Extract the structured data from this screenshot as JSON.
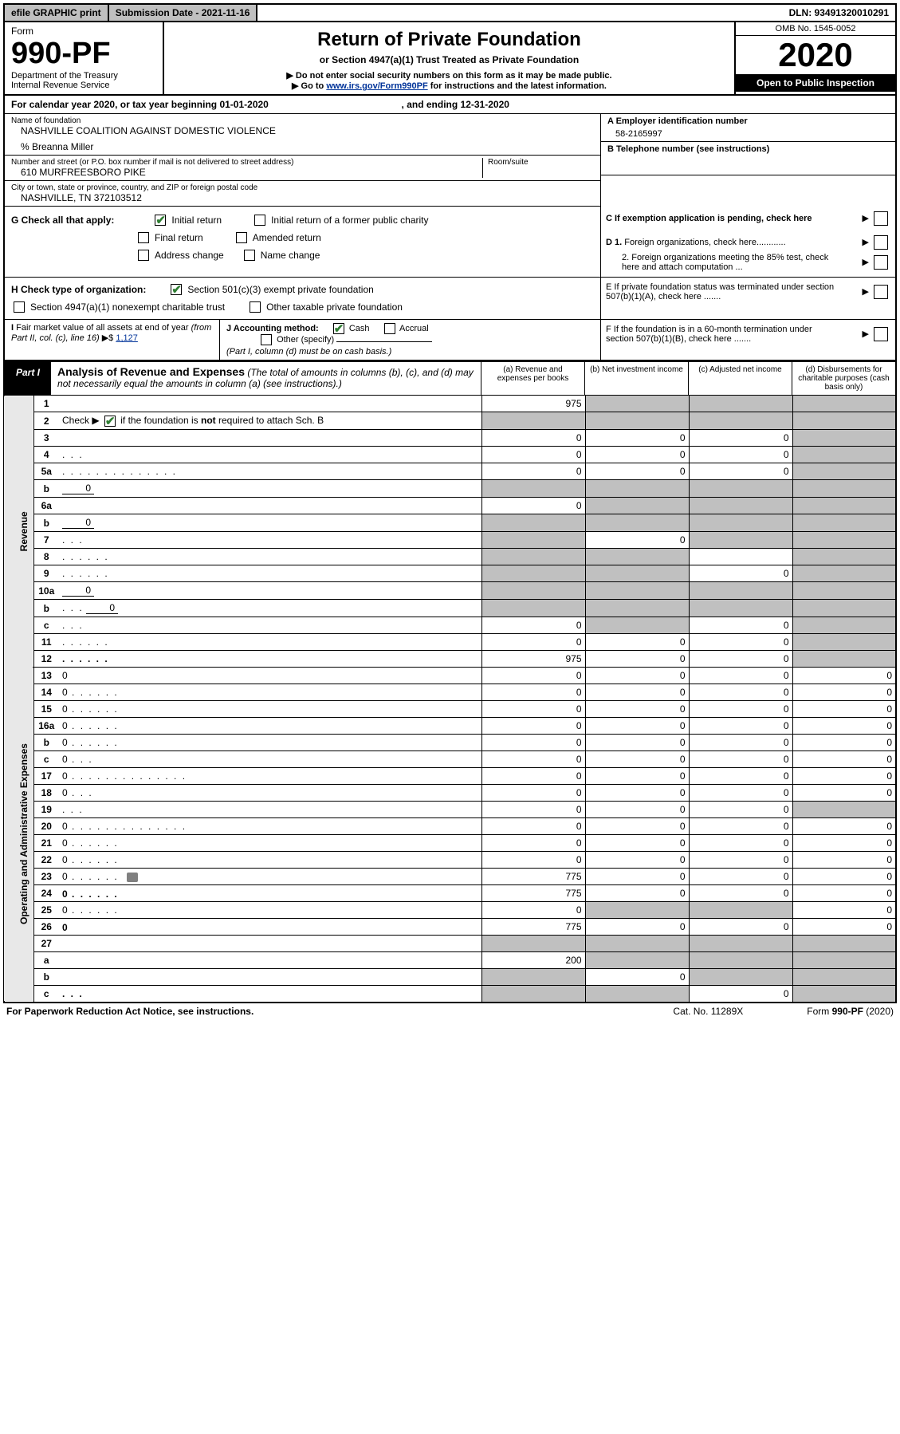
{
  "topbar": {
    "efile": "efile GRAPHIC print",
    "submission": "Submission Date - 2021-11-16",
    "dln": "DLN: 93491320010291"
  },
  "header": {
    "form_label": "Form",
    "form_number": "990-PF",
    "dept1": "Department of the Treasury",
    "dept2": "Internal Revenue Service",
    "title": "Return of Private Foundation",
    "subtitle": "or Section 4947(a)(1) Trust Treated as Private Foundation",
    "note1": "▶ Do not enter social security numbers on this form as it may be made public.",
    "note2_pre": "▶ Go to ",
    "note2_link": "www.irs.gov/Form990PF",
    "note2_post": " for instructions and the latest information.",
    "omb": "OMB No. 1545-0052",
    "year": "2020",
    "open": "Open to Public Inspection"
  },
  "calendar": {
    "text_pre": "For calendar year 2020, or tax year beginning ",
    "begin": "01-01-2020",
    "text_mid": " , and ending ",
    "end": "12-31-2020"
  },
  "entity": {
    "name_lbl": "Name of foundation",
    "name": "NASHVILLE COALITION AGAINST DOMESTIC VIOLENCE",
    "care_of": "% Breanna Miller",
    "addr_lbl": "Number and street (or P.O. box number if mail is not delivered to street address)",
    "addr": "610 MURFREESBORO PIKE",
    "room_lbl": "Room/suite",
    "city_lbl": "City or town, state or province, country, and ZIP or foreign postal code",
    "city": "NASHVILLE, TN  372103512",
    "a_lbl": "A Employer identification number",
    "a_val": "58-2165997",
    "b_lbl": "B Telephone number (see instructions)",
    "c_lbl": "C If exemption application is pending, check here",
    "d1_lbl": "D 1. Foreign organizations, check here............",
    "d2_lbl": "2. Foreign organizations meeting the 85% test, check here and attach computation ...",
    "e_lbl": "E  If private foundation status was terminated under section 507(b)(1)(A), check here .......",
    "f_lbl": "F  If the foundation is in a 60-month termination under section 507(b)(1)(B), check here .......",
    "g_lbl": "G Check all that apply:",
    "g_opts": [
      "Initial return",
      "Initial return of a former public charity",
      "Final return",
      "Amended return",
      "Address change",
      "Name change"
    ],
    "h_lbl": "H Check type of organization:",
    "h_opts": [
      "Section 501(c)(3) exempt private foundation",
      "Section 4947(a)(1) nonexempt charitable trust",
      "Other taxable private foundation"
    ],
    "i_lbl": "I Fair market value of all assets at end of year (from Part II, col. (c), line 16) ▶$ ",
    "i_val": "1,127",
    "j_lbl": "J Accounting method:",
    "j_opts": [
      "Cash",
      "Accrual",
      "Other (specify)"
    ],
    "j_note": "(Part I, column (d) must be on cash basis.)"
  },
  "part1": {
    "badge": "Part I",
    "title": "Analysis of Revenue and Expenses",
    "title_note": " (The total of amounts in columns (b), (c), and (d) may not necessarily equal the amounts in column (a) (see instructions).)",
    "col_a": "(a) Revenue and expenses per books",
    "col_b": "(b) Net investment income",
    "col_c": "(c) Adjusted net income",
    "col_d": "(d) Disbursements for charitable purposes (cash basis only)",
    "vert_rev": "Revenue",
    "vert_exp": "Operating and Administrative Expenses"
  },
  "rows": [
    {
      "n": "1",
      "d": "",
      "a": "975",
      "b": "",
      "c": "",
      "bs": true,
      "cs": true,
      "ds": true
    },
    {
      "n": "2",
      "d": "",
      "a": "",
      "b": "",
      "c": "",
      "as": true,
      "bs": true,
      "cs": true,
      "ds": true,
      "raw": true,
      "html": "Check ▶ <span class='checkbox checked'></span> if the foundation is <b>not</b> required to attach Sch. B"
    },
    {
      "n": "3",
      "d": "",
      "a": "0",
      "b": "0",
      "c": "0",
      "ds": true
    },
    {
      "n": "4",
      "d": "",
      "a": "0",
      "b": "0",
      "c": "0",
      "ds": true,
      "dots": "xs"
    },
    {
      "n": "5a",
      "d": "",
      "a": "0",
      "b": "0",
      "c": "0",
      "ds": true,
      "dots": "l"
    },
    {
      "n": "b",
      "d": "",
      "a": "",
      "b": "",
      "c": "",
      "as": true,
      "bs": true,
      "cs": true,
      "ds": true,
      "inline": "0"
    },
    {
      "n": "6a",
      "d": "",
      "a": "0",
      "b": "",
      "c": "",
      "bs": true,
      "cs": true,
      "ds": true
    },
    {
      "n": "b",
      "d": "",
      "a": "",
      "b": "",
      "c": "",
      "as": true,
      "bs": true,
      "cs": true,
      "ds": true,
      "inline": "0"
    },
    {
      "n": "7",
      "d": "",
      "a": "",
      "b": "0",
      "c": "",
      "as": true,
      "cs": true,
      "ds": true,
      "dots": "xs"
    },
    {
      "n": "8",
      "d": "",
      "a": "",
      "b": "",
      "c": "",
      "as": true,
      "bs": true,
      "ds": true,
      "dots": "s"
    },
    {
      "n": "9",
      "d": "",
      "a": "",
      "b": "",
      "c": "0",
      "as": true,
      "bs": true,
      "ds": true,
      "dots": "s"
    },
    {
      "n": "10a",
      "d": "",
      "a": "",
      "b": "",
      "c": "",
      "as": true,
      "bs": true,
      "cs": true,
      "ds": true,
      "inline": "0"
    },
    {
      "n": "b",
      "d": "",
      "a": "",
      "b": "",
      "c": "",
      "as": true,
      "bs": true,
      "cs": true,
      "ds": true,
      "inline": "0",
      "dots": "xs"
    },
    {
      "n": "c",
      "d": "",
      "a": "0",
      "b": "",
      "c": "0",
      "bs": true,
      "ds": true,
      "dots": "xs"
    },
    {
      "n": "11",
      "d": "",
      "a": "0",
      "b": "0",
      "c": "0",
      "ds": true,
      "dots": "s"
    },
    {
      "n": "12",
      "d": "",
      "a": "975",
      "b": "0",
      "c": "0",
      "ds": true,
      "bold": true,
      "dots": "s"
    },
    {
      "n": "13",
      "d": "0",
      "a": "0",
      "b": "0",
      "c": "0"
    },
    {
      "n": "14",
      "d": "0",
      "a": "0",
      "b": "0",
      "c": "0",
      "dots": "s"
    },
    {
      "n": "15",
      "d": "0",
      "a": "0",
      "b": "0",
      "c": "0",
      "dots": "s"
    },
    {
      "n": "16a",
      "d": "0",
      "a": "0",
      "b": "0",
      "c": "0",
      "dots": "s"
    },
    {
      "n": "b",
      "d": "0",
      "a": "0",
      "b": "0",
      "c": "0",
      "dots": "s"
    },
    {
      "n": "c",
      "d": "0",
      "a": "0",
      "b": "0",
      "c": "0",
      "dots": "xs"
    },
    {
      "n": "17",
      "d": "0",
      "a": "0",
      "b": "0",
      "c": "0",
      "dots": "l"
    },
    {
      "n": "18",
      "d": "0",
      "a": "0",
      "b": "0",
      "c": "0",
      "dots": "xs"
    },
    {
      "n": "19",
      "d": "",
      "a": "0",
      "b": "0",
      "c": "0",
      "ds": true,
      "dots": "xs"
    },
    {
      "n": "20",
      "d": "0",
      "a": "0",
      "b": "0",
      "c": "0",
      "dots": "l"
    },
    {
      "n": "21",
      "d": "0",
      "a": "0",
      "b": "0",
      "c": "0",
      "dots": "s"
    },
    {
      "n": "22",
      "d": "0",
      "a": "0",
      "b": "0",
      "c": "0",
      "dots": "s"
    },
    {
      "n": "23",
      "d": "0",
      "a": "775",
      "b": "0",
      "c": "0",
      "dots": "s",
      "attach": true
    },
    {
      "n": "24",
      "d": "0",
      "a": "775",
      "b": "0",
      "c": "0",
      "bold": true,
      "dots": "s",
      "tall": true
    },
    {
      "n": "25",
      "d": "0",
      "a": "0",
      "b": "",
      "c": "",
      "bs": true,
      "cs": true,
      "dots": "s"
    },
    {
      "n": "26",
      "d": "0",
      "a": "775",
      "b": "0",
      "c": "0",
      "bold": true,
      "tall": true
    },
    {
      "n": "27",
      "d": "",
      "a": "",
      "b": "",
      "c": "",
      "as": true,
      "bs": true,
      "cs": true,
      "ds": true
    },
    {
      "n": "a",
      "d": "",
      "a": "200",
      "b": "",
      "c": "",
      "bs": true,
      "cs": true,
      "ds": true,
      "bold": true
    },
    {
      "n": "b",
      "d": "",
      "a": "",
      "b": "0",
      "c": "",
      "as": true,
      "cs": true,
      "ds": true,
      "bold": true
    },
    {
      "n": "c",
      "d": "",
      "a": "",
      "b": "",
      "c": "0",
      "as": true,
      "bs": true,
      "ds": true,
      "bold": true,
      "dots": "xs"
    }
  ],
  "footer": {
    "left": "For Paperwork Reduction Act Notice, see instructions.",
    "mid": "Cat. No. 11289X",
    "right": "Form 990-PF (2020)"
  },
  "colors": {
    "shade": "#c0c0c0",
    "vert_bg": "#e8e8e8",
    "link": "#003399",
    "check": "#2e7d32"
  }
}
